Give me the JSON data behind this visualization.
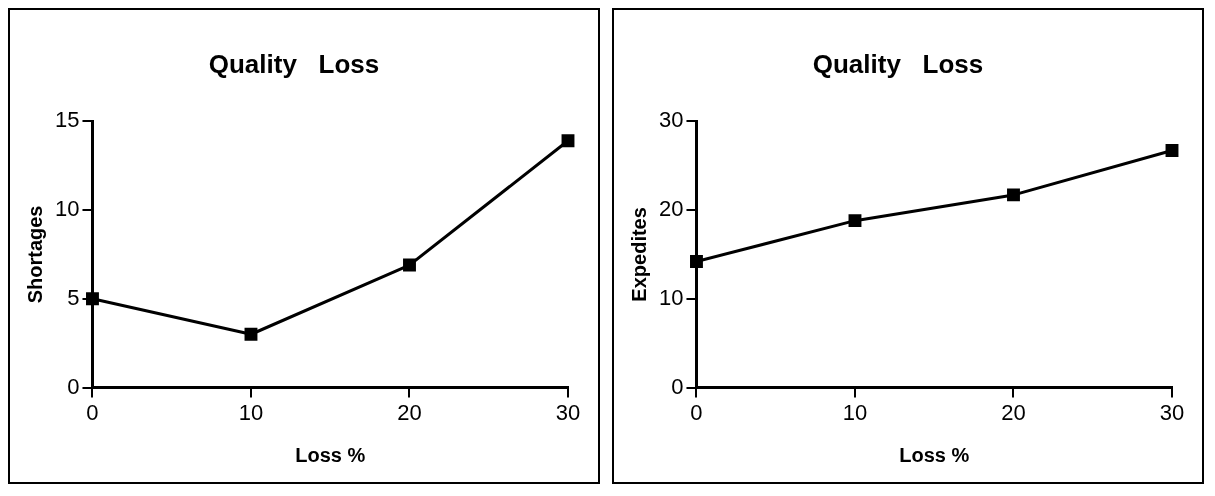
{
  "chart_data": [
    {
      "type": "line",
      "title": "Quality   Loss",
      "xlabel": "Loss %",
      "ylabel": "Shortages",
      "x": [
        0,
        10,
        20,
        30
      ],
      "xlim": [
        0,
        30
      ],
      "xticks": [
        0,
        10,
        20,
        30
      ],
      "ylim": [
        0,
        15
      ],
      "yticks": [
        0,
        5,
        10,
        15
      ],
      "marker": "square",
      "series": [
        {
          "color": "#000000",
          "values": [
            5,
            3,
            6.9,
            13.9
          ]
        }
      ]
    },
    {
      "type": "line",
      "title": "Quality   Loss",
      "xlabel": "Loss %",
      "ylabel": "Expedites",
      "x": [
        0,
        10,
        20,
        30
      ],
      "xlim": [
        0,
        30
      ],
      "xticks": [
        0,
        10,
        20,
        30
      ],
      "ylim": [
        0,
        30
      ],
      "yticks": [
        0,
        10,
        20,
        30
      ],
      "marker": "square",
      "series": [
        {
          "color": "#000000",
          "values": [
            14.2,
            18.8,
            21.7,
            26.7
          ]
        }
      ]
    }
  ]
}
